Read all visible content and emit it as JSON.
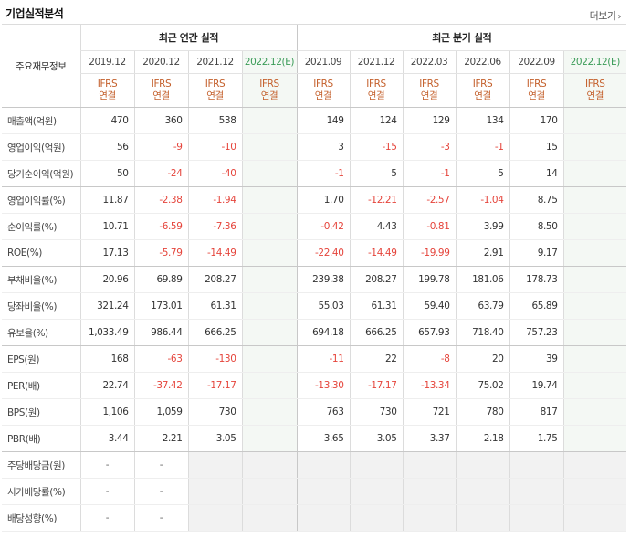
{
  "title": "기업실적분석",
  "more_label": "더보기",
  "more_arrow": "›",
  "header": {
    "label": "주요재무정보",
    "annual_group": "최근 연간 실적",
    "quarter_group": "최근 분기 실적",
    "annual_years": [
      "2019.12",
      "2020.12",
      "2021.12",
      "2022.12(E)"
    ],
    "quarter_years": [
      "2021.09",
      "2021.12",
      "2022.03",
      "2022.06",
      "2022.09",
      "2022.12(E)"
    ],
    "ifrs_line1": "IFRS",
    "ifrs_line2": "연결"
  },
  "rows": [
    {
      "label": "매출액(억원)",
      "annual": [
        "470",
        "360",
        "538",
        ""
      ],
      "quarter": [
        "149",
        "124",
        "129",
        "134",
        "170",
        ""
      ]
    },
    {
      "label": "영업이익(억원)",
      "annual": [
        "56",
        "-9",
        "-10",
        ""
      ],
      "quarter": [
        "3",
        "-15",
        "-3",
        "-1",
        "15",
        ""
      ]
    },
    {
      "label": "당기순이익(억원)",
      "annual": [
        "50",
        "-24",
        "-40",
        ""
      ],
      "quarter": [
        "-1",
        "5",
        "-1",
        "5",
        "14",
        ""
      ]
    },
    {
      "label": "영업이익률(%)",
      "annual": [
        "11.87",
        "-2.38",
        "-1.94",
        ""
      ],
      "quarter": [
        "1.70",
        "-12.21",
        "-2.57",
        "-1.04",
        "8.75",
        ""
      ]
    },
    {
      "label": "순이익률(%)",
      "annual": [
        "10.71",
        "-6.59",
        "-7.36",
        ""
      ],
      "quarter": [
        "-0.42",
        "4.43",
        "-0.81",
        "3.99",
        "8.50",
        ""
      ]
    },
    {
      "label": "ROE(%)",
      "annual": [
        "17.13",
        "-5.79",
        "-14.49",
        ""
      ],
      "quarter": [
        "-22.40",
        "-14.49",
        "-19.99",
        "2.91",
        "9.17",
        ""
      ]
    },
    {
      "label": "부채비율(%)",
      "annual": [
        "20.96",
        "69.89",
        "208.27",
        ""
      ],
      "quarter": [
        "239.38",
        "208.27",
        "199.78",
        "181.06",
        "178.73",
        ""
      ]
    },
    {
      "label": "당좌비율(%)",
      "annual": [
        "321.24",
        "173.01",
        "61.31",
        ""
      ],
      "quarter": [
        "55.03",
        "61.31",
        "59.40",
        "63.79",
        "65.89",
        ""
      ]
    },
    {
      "label": "유보율(%)",
      "annual": [
        "1,033.49",
        "986.44",
        "666.25",
        ""
      ],
      "quarter": [
        "694.18",
        "666.25",
        "657.93",
        "718.40",
        "757.23",
        ""
      ]
    },
    {
      "label": "EPS(원)",
      "annual": [
        "168",
        "-63",
        "-130",
        ""
      ],
      "quarter": [
        "-11",
        "22",
        "-8",
        "20",
        "39",
        ""
      ]
    },
    {
      "label": "PER(배)",
      "annual": [
        "22.74",
        "-37.42",
        "-17.17",
        ""
      ],
      "quarter": [
        "-13.30",
        "-17.17",
        "-13.34",
        "75.02",
        "19.74",
        ""
      ]
    },
    {
      "label": "BPS(원)",
      "annual": [
        "1,106",
        "1,059",
        "730",
        ""
      ],
      "quarter": [
        "763",
        "730",
        "721",
        "780",
        "817",
        ""
      ]
    },
    {
      "label": "PBR(배)",
      "annual": [
        "3.44",
        "2.21",
        "3.05",
        ""
      ],
      "quarter": [
        "3.65",
        "3.05",
        "3.37",
        "2.18",
        "1.75",
        ""
      ]
    },
    {
      "label": "주당배당금(원)",
      "annual": [
        "-",
        "-",
        "",
        ""
      ],
      "quarter": [
        "",
        "",
        "",
        "",
        "",
        ""
      ]
    },
    {
      "label": "시가배당률(%)",
      "annual": [
        "-",
        "-",
        "",
        ""
      ],
      "quarter": [
        "",
        "",
        "",
        "",
        "",
        ""
      ]
    },
    {
      "label": "배당성향(%)",
      "annual": [
        "-",
        "-",
        "",
        ""
      ],
      "quarter": [
        "",
        "",
        "",
        "",
        "",
        ""
      ]
    }
  ]
}
